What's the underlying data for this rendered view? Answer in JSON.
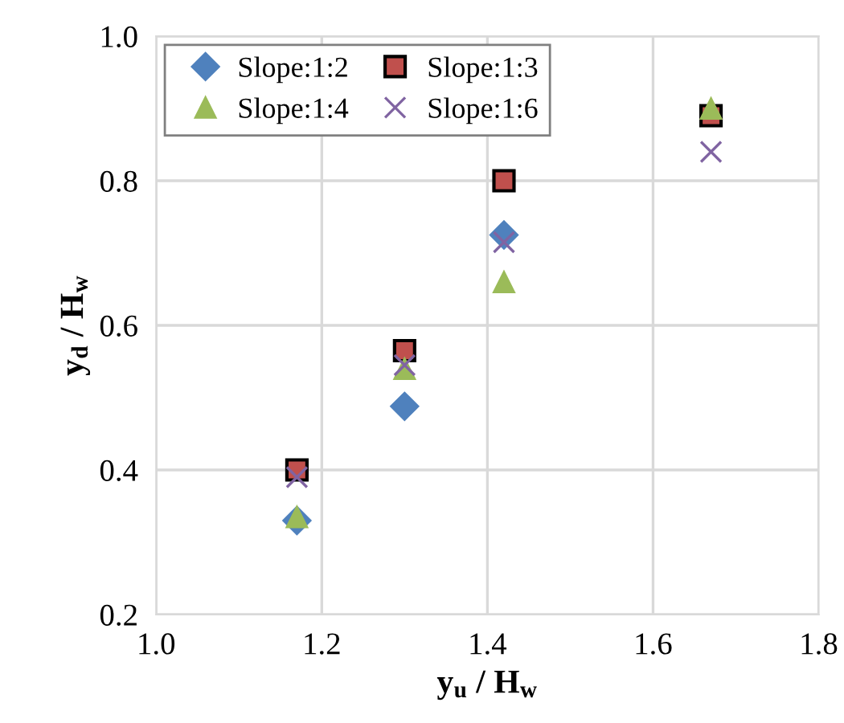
{
  "chart_data": {
    "type": "scatter",
    "xlabel": "y$_{u}$ / H$_{w}$",
    "ylabel": "y$_{d}$ / H$_{w}$",
    "xlim": [
      1.0,
      1.8
    ],
    "xticks": [
      {
        "value": 1.0,
        "label": "1.0"
      },
      1.2,
      1.4,
      1.6,
      1.8
    ],
    "ylim": [
      0.2,
      1.0
    ],
    "yticks": [
      0.2,
      0.4,
      0.6,
      0.8,
      {
        "value": 1.0,
        "label": "1.0"
      }
    ],
    "grid": true,
    "legend": "top left",
    "x": [
      1.17,
      1.3,
      1.42,
      1.67
    ],
    "series": [
      {
        "name": "Slope:1:2",
        "color": "#4f81bd",
        "marker": "diamond",
        "values": [
          0.33,
          0.488,
          0.725,
          null
        ]
      },
      {
        "name": "Slope:1:3",
        "color": "#c0504d",
        "marker": "square",
        "values": [
          0.4,
          0.565,
          0.8,
          0.89
        ]
      },
      {
        "name": "Slope:1:4",
        "color": "#9bbb59",
        "marker": "triangle",
        "values": [
          0.335,
          0.54,
          0.66,
          0.9
        ]
      },
      {
        "name": "Slope:1:6",
        "color": "#8064a2",
        "marker": "cross",
        "values": [
          0.39,
          0.545,
          0.715,
          0.84
        ]
      }
    ]
  }
}
